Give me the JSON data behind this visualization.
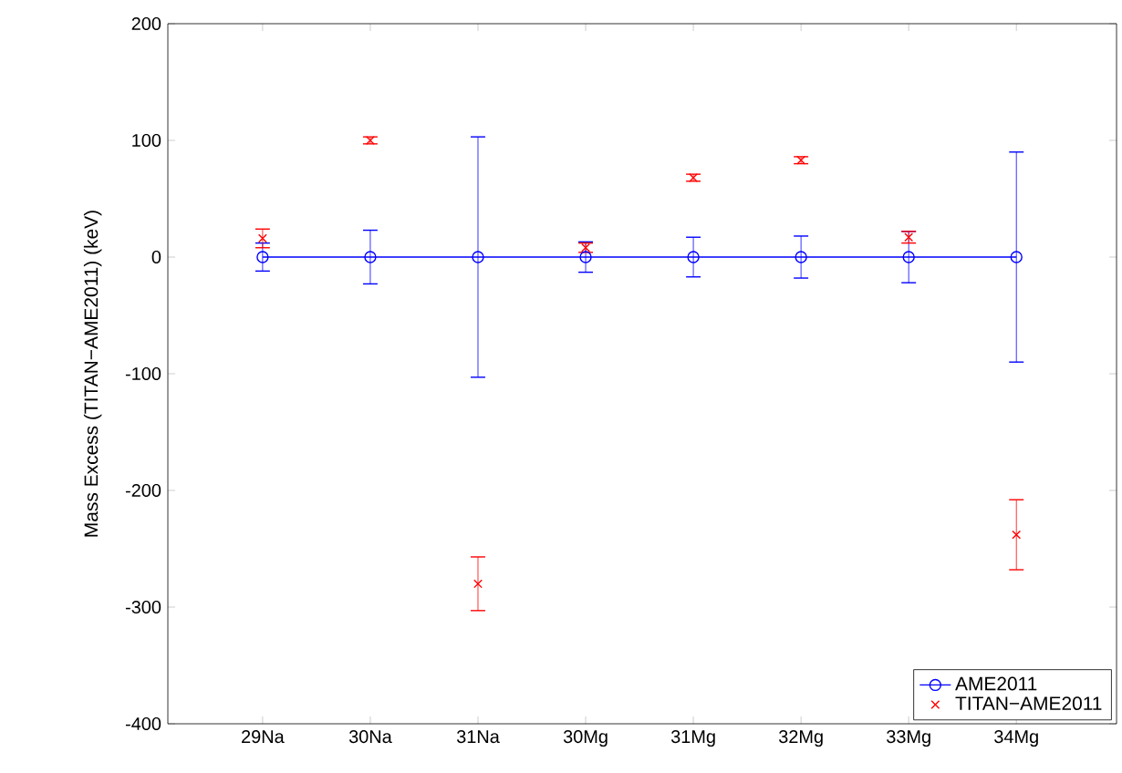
{
  "chart_data": {
    "type": "scatter",
    "ylabel": "Mass Excess (TITAN−AME2011) (keV)",
    "categories": [
      "29Na",
      "30Na",
      "31Na",
      "30Mg",
      "31Mg",
      "32Mg",
      "33Mg",
      "34Mg"
    ],
    "series": [
      {
        "name": "AME2011",
        "type": "line",
        "marker": "circle",
        "line_style": "solid",
        "color": "#0000ff",
        "values": [
          0,
          0,
          0,
          0,
          0,
          0,
          0,
          0
        ],
        "errors": [
          12,
          23,
          103,
          13,
          17,
          18,
          22,
          90
        ]
      },
      {
        "name": "TITAN−AME2011",
        "marker": "cross",
        "color": "#ff0000",
        "values": [
          16,
          100,
          -280,
          8,
          68,
          83,
          17,
          -238
        ],
        "errors": [
          8,
          3,
          23,
          4,
          3,
          3,
          5,
          30
        ]
      }
    ],
    "ylim": [
      -400,
      200
    ],
    "yticks": [
      -400,
      -300,
      -200,
      -100,
      0,
      100,
      200
    ],
    "grid": false,
    "legend": "bottom right"
  }
}
